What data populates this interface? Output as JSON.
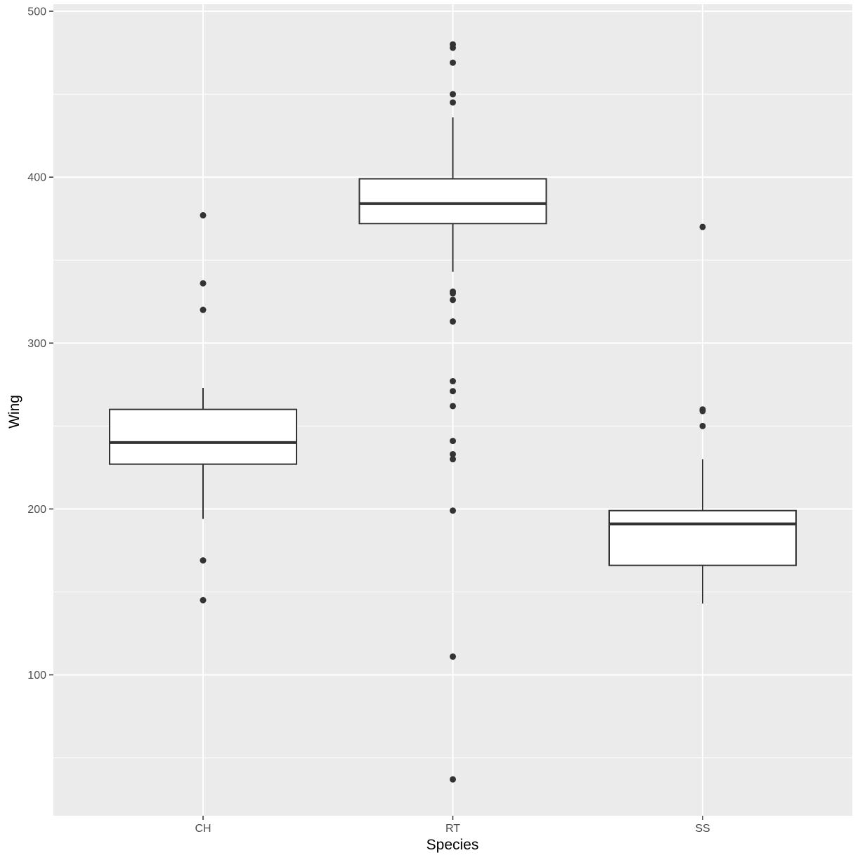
{
  "chart_data": {
    "type": "boxplot",
    "xlabel": "Species",
    "ylabel": "Wing",
    "ylim": [
      15,
      500
    ],
    "yticks": [
      100,
      200,
      300,
      400,
      500
    ],
    "y_minor_ticks": [
      50,
      150,
      250,
      350,
      450
    ],
    "grid": true,
    "colors": {
      "panel": "#ebebeb",
      "grid": "#ffffff",
      "box_fill": "#ffffff",
      "box_line": "#333333",
      "outlier": "#333333"
    },
    "categories": [
      "CH",
      "RT",
      "SS"
    ],
    "boxes": [
      {
        "category": "CH",
        "whisker_low": 194,
        "q1": 227,
        "median": 240,
        "q3": 260,
        "whisker_high": 273,
        "outliers": [
          377,
          336,
          320,
          169,
          145
        ]
      },
      {
        "category": "RT",
        "whisker_low": 343,
        "q1": 372,
        "median": 384,
        "q3": 399,
        "whisker_high": 436,
        "outliers": [
          480,
          478,
          469,
          450,
          445,
          331,
          330,
          326,
          313,
          277,
          271,
          262,
          241,
          233,
          230,
          199,
          111,
          37
        ]
      },
      {
        "category": "SS",
        "whisker_low": 143,
        "q1": 166,
        "median": 191,
        "q3": 199,
        "whisker_high": 230,
        "outliers": [
          370,
          260,
          259,
          250
        ]
      }
    ]
  }
}
